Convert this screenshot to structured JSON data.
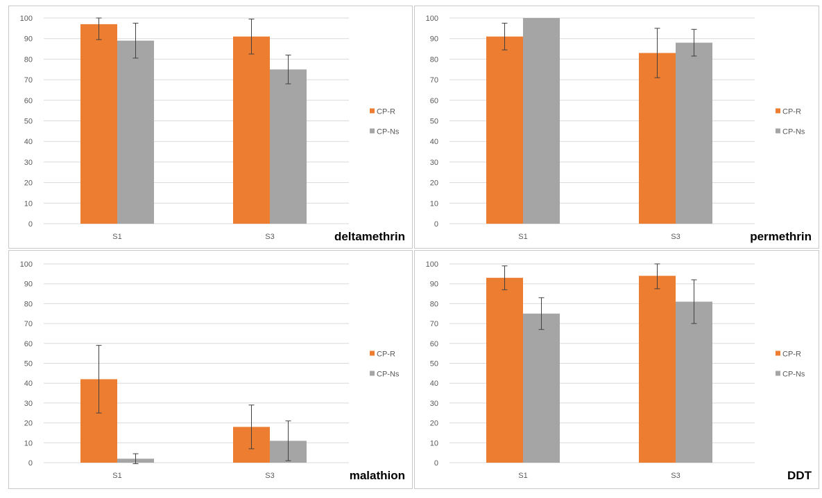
{
  "colors": {
    "cp_r": "#ED7D31",
    "cp_ns": "#A5A5A5",
    "grid": "#D9D9D9",
    "error_bar": "#404040"
  },
  "chart_data": [
    {
      "type": "bar",
      "title": "deltamethrin",
      "categories": [
        "S1",
        "S3"
      ],
      "ylim": [
        0,
        100
      ],
      "yticks": [
        0,
        10,
        20,
        30,
        40,
        50,
        60,
        70,
        80,
        90,
        100
      ],
      "grid": true,
      "legend_position": "right",
      "series": [
        {
          "name": "CP-R",
          "values": [
            97,
            91
          ],
          "error": [
            7.5,
            8.5
          ]
        },
        {
          "name": "CP-Ns",
          "values": [
            89,
            75
          ],
          "error": [
            8.5,
            7
          ]
        }
      ]
    },
    {
      "type": "bar",
      "title": "permethrin",
      "categories": [
        "S1",
        "S3"
      ],
      "ylim": [
        0,
        100
      ],
      "yticks": [
        0,
        10,
        20,
        30,
        40,
        50,
        60,
        70,
        80,
        90,
        100
      ],
      "grid": true,
      "legend_position": "right",
      "series": [
        {
          "name": "CP-R",
          "values": [
            91,
            83
          ],
          "error": [
            6.5,
            12
          ]
        },
        {
          "name": "CP-Ns",
          "values": [
            100,
            88
          ],
          "error": [
            0,
            6.5
          ]
        }
      ]
    },
    {
      "type": "bar",
      "title": "malathion",
      "categories": [
        "S1",
        "S3"
      ],
      "ylim": [
        0,
        100
      ],
      "yticks": [
        0,
        10,
        20,
        30,
        40,
        50,
        60,
        70,
        80,
        90,
        100
      ],
      "grid": true,
      "legend_position": "right",
      "series": [
        {
          "name": "CP-R",
          "values": [
            42,
            18
          ],
          "error": [
            17,
            11
          ]
        },
        {
          "name": "CP-Ns",
          "values": [
            2,
            11
          ],
          "error": [
            2.5,
            10
          ]
        }
      ]
    },
    {
      "type": "bar",
      "title": "DDT",
      "categories": [
        "S1",
        "S3"
      ],
      "ylim": [
        0,
        100
      ],
      "yticks": [
        0,
        10,
        20,
        30,
        40,
        50,
        60,
        70,
        80,
        90,
        100
      ],
      "grid": true,
      "legend_position": "right",
      "series": [
        {
          "name": "CP-R",
          "values": [
            93,
            94
          ],
          "error": [
            6,
            6.5
          ]
        },
        {
          "name": "CP-Ns",
          "values": [
            75,
            81
          ],
          "error": [
            8,
            11
          ]
        }
      ]
    }
  ]
}
